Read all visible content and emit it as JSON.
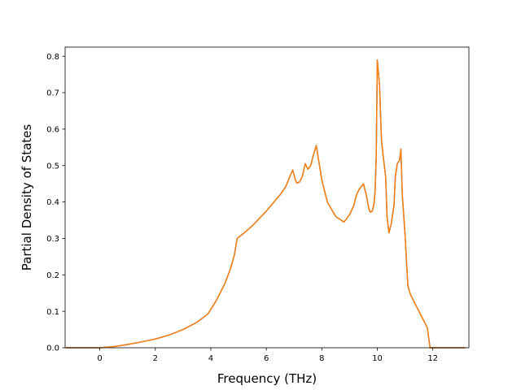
{
  "chart_data": {
    "type": "line",
    "title": "",
    "xlabel": "Frequency (THz)",
    "ylabel": "Partial Density of States",
    "xlim": [
      -1.25,
      13.3
    ],
    "ylim": [
      0.0,
      0.825
    ],
    "xticks": [
      0,
      2,
      4,
      6,
      8,
      10,
      12
    ],
    "xtick_labels": [
      "0",
      "2",
      "4",
      "6",
      "8",
      "10",
      "12"
    ],
    "yticks": [
      0.0,
      0.1,
      0.2,
      0.3,
      0.4,
      0.5,
      0.6,
      0.7,
      0.8
    ],
    "ytick_labels": [
      "0.0",
      "0.1",
      "0.2",
      "0.3",
      "0.4",
      "0.5",
      "0.6",
      "0.7",
      "0.8"
    ],
    "grid": false,
    "legend": "none",
    "series": [
      {
        "color": "#1f77b4",
        "x": [
          -1.2,
          0.0,
          0.5,
          1.0,
          1.5,
          2.0,
          2.5,
          3.0,
          3.5,
          3.9,
          4.2,
          4.5,
          4.7,
          4.85,
          4.95,
          5.2,
          5.5,
          6.0,
          6.5,
          6.7,
          6.85,
          6.95,
          7.05,
          7.1,
          7.2,
          7.3,
          7.4,
          7.5,
          7.55,
          7.6,
          7.7,
          7.8,
          8.0,
          8.2,
          8.5,
          8.8,
          9.0,
          9.15,
          9.25,
          9.35,
          9.5,
          9.6,
          9.7,
          9.75,
          9.82,
          9.88,
          9.92,
          9.96,
          10.0,
          10.08,
          10.15,
          10.22,
          10.3,
          10.35,
          10.42,
          10.5,
          10.6,
          10.65,
          10.72,
          10.8,
          10.85,
          10.9,
          11.0,
          11.1,
          11.2,
          11.4,
          11.6,
          11.8,
          11.9,
          11.95,
          12.0,
          12.5,
          13.15
        ],
        "y": [
          0.0,
          0.0,
          0.003,
          0.009,
          0.016,
          0.024,
          0.035,
          0.05,
          0.07,
          0.093,
          0.13,
          0.175,
          0.215,
          0.255,
          0.3,
          0.315,
          0.335,
          0.375,
          0.42,
          0.442,
          0.47,
          0.488,
          0.46,
          0.452,
          0.455,
          0.47,
          0.505,
          0.49,
          0.495,
          0.5,
          0.53,
          0.555,
          0.46,
          0.4,
          0.36,
          0.345,
          0.365,
          0.39,
          0.42,
          0.435,
          0.45,
          0.42,
          0.38,
          0.372,
          0.375,
          0.395,
          0.43,
          0.52,
          0.79,
          0.72,
          0.57,
          0.52,
          0.47,
          0.36,
          0.315,
          0.34,
          0.39,
          0.47,
          0.505,
          0.515,
          0.545,
          0.42,
          0.31,
          0.17,
          0.145,
          0.115,
          0.085,
          0.055,
          0.0,
          0.0,
          0.0,
          0.0,
          0.0
        ]
      },
      {
        "color": "#ff7f0e",
        "x": [
          -1.2,
          0.0,
          0.5,
          1.0,
          1.5,
          2.0,
          2.5,
          3.0,
          3.5,
          3.9,
          4.2,
          4.5,
          4.7,
          4.85,
          4.95,
          5.2,
          5.5,
          6.0,
          6.5,
          6.7,
          6.85,
          6.95,
          7.05,
          7.1,
          7.2,
          7.3,
          7.4,
          7.5,
          7.55,
          7.6,
          7.7,
          7.8,
          8.0,
          8.2,
          8.5,
          8.8,
          9.0,
          9.15,
          9.25,
          9.35,
          9.5,
          9.6,
          9.7,
          9.75,
          9.82,
          9.88,
          9.92,
          9.96,
          10.0,
          10.08,
          10.15,
          10.22,
          10.3,
          10.35,
          10.42,
          10.5,
          10.6,
          10.65,
          10.72,
          10.8,
          10.85,
          10.9,
          11.0,
          11.1,
          11.2,
          11.4,
          11.6,
          11.8,
          11.9,
          11.95,
          12.0,
          12.5,
          13.15
        ],
        "y": [
          0.0,
          0.0,
          0.003,
          0.009,
          0.016,
          0.024,
          0.035,
          0.05,
          0.07,
          0.093,
          0.13,
          0.175,
          0.215,
          0.255,
          0.3,
          0.315,
          0.335,
          0.375,
          0.42,
          0.442,
          0.47,
          0.488,
          0.46,
          0.452,
          0.455,
          0.47,
          0.505,
          0.49,
          0.495,
          0.5,
          0.53,
          0.555,
          0.46,
          0.4,
          0.36,
          0.345,
          0.365,
          0.39,
          0.42,
          0.435,
          0.45,
          0.42,
          0.38,
          0.372,
          0.375,
          0.395,
          0.43,
          0.52,
          0.79,
          0.72,
          0.57,
          0.52,
          0.47,
          0.36,
          0.315,
          0.34,
          0.39,
          0.47,
          0.505,
          0.515,
          0.545,
          0.42,
          0.31,
          0.17,
          0.145,
          0.115,
          0.085,
          0.055,
          0.0,
          0.0,
          0.0,
          0.0,
          0.0
        ]
      }
    ]
  }
}
